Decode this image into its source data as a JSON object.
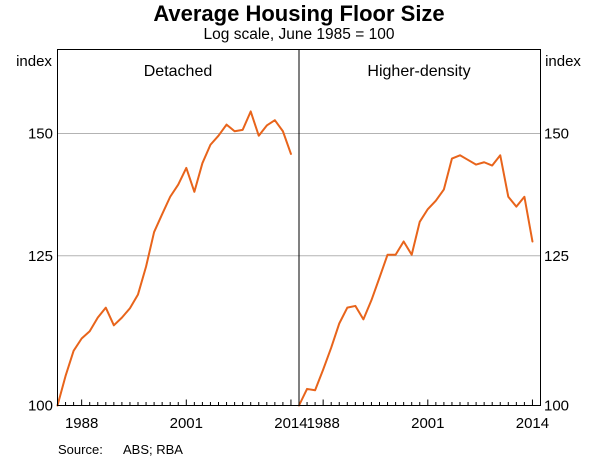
{
  "title": "Average Housing Floor Size",
  "subtitle": "Log scale, June 1985 = 100",
  "source_label": "Source:",
  "source_text": "ABS; RBA",
  "colors": {
    "series": "#e8641b",
    "grid": "#b3b3b3",
    "frame": "#000000",
    "background": "#ffffff"
  },
  "chart_data": {
    "type": "line",
    "scale": "log",
    "ylim": [
      100,
      170
    ],
    "xlim": [
      1985,
      2015
    ],
    "yticks": [
      100,
      125,
      150
    ],
    "xticks": [
      1988,
      2001,
      2014
    ],
    "ylabel_left": "index",
    "ylabel_right": "index",
    "grid": true,
    "panels": [
      {
        "name": "Detached",
        "x": [
          1985,
          1986,
          1987,
          1988,
          1989,
          1990,
          1991,
          1992,
          1993,
          1994,
          1995,
          1996,
          1997,
          1998,
          1999,
          2000,
          2001,
          2002,
          2003,
          2004,
          2005,
          2006,
          2007,
          2008,
          2009,
          2010,
          2011,
          2012,
          2013,
          2014
        ],
        "values": [
          100,
          104.5,
          108.5,
          110.5,
          111.7,
          114,
          115.7,
          112.7,
          114,
          115.6,
          118,
          123,
          129.5,
          133,
          136.5,
          139,
          142.5,
          137.5,
          143.5,
          147.5,
          149.5,
          152,
          150.5,
          150.8,
          155,
          149.5,
          151.8,
          153,
          150.5,
          145.5
        ]
      },
      {
        "name": "Higher-density",
        "x": [
          1985,
          1986,
          1987,
          1988,
          1989,
          1990,
          1991,
          1992,
          1993,
          1994,
          1995,
          1996,
          1997,
          1998,
          1999,
          2000,
          2001,
          2002,
          2003,
          2004,
          2005,
          2006,
          2007,
          2008,
          2009,
          2010,
          2011,
          2012,
          2013,
          2014
        ],
        "values": [
          100,
          102.5,
          102.3,
          105.5,
          109,
          113,
          115.7,
          116,
          113.7,
          117,
          121,
          125.2,
          125.2,
          127.7,
          125.2,
          131.5,
          134,
          135.7,
          138,
          144.5,
          145.2,
          144.2,
          143.2,
          143.7,
          143,
          145.2,
          136.5,
          134.5,
          136.5,
          127.7
        ]
      }
    ]
  }
}
